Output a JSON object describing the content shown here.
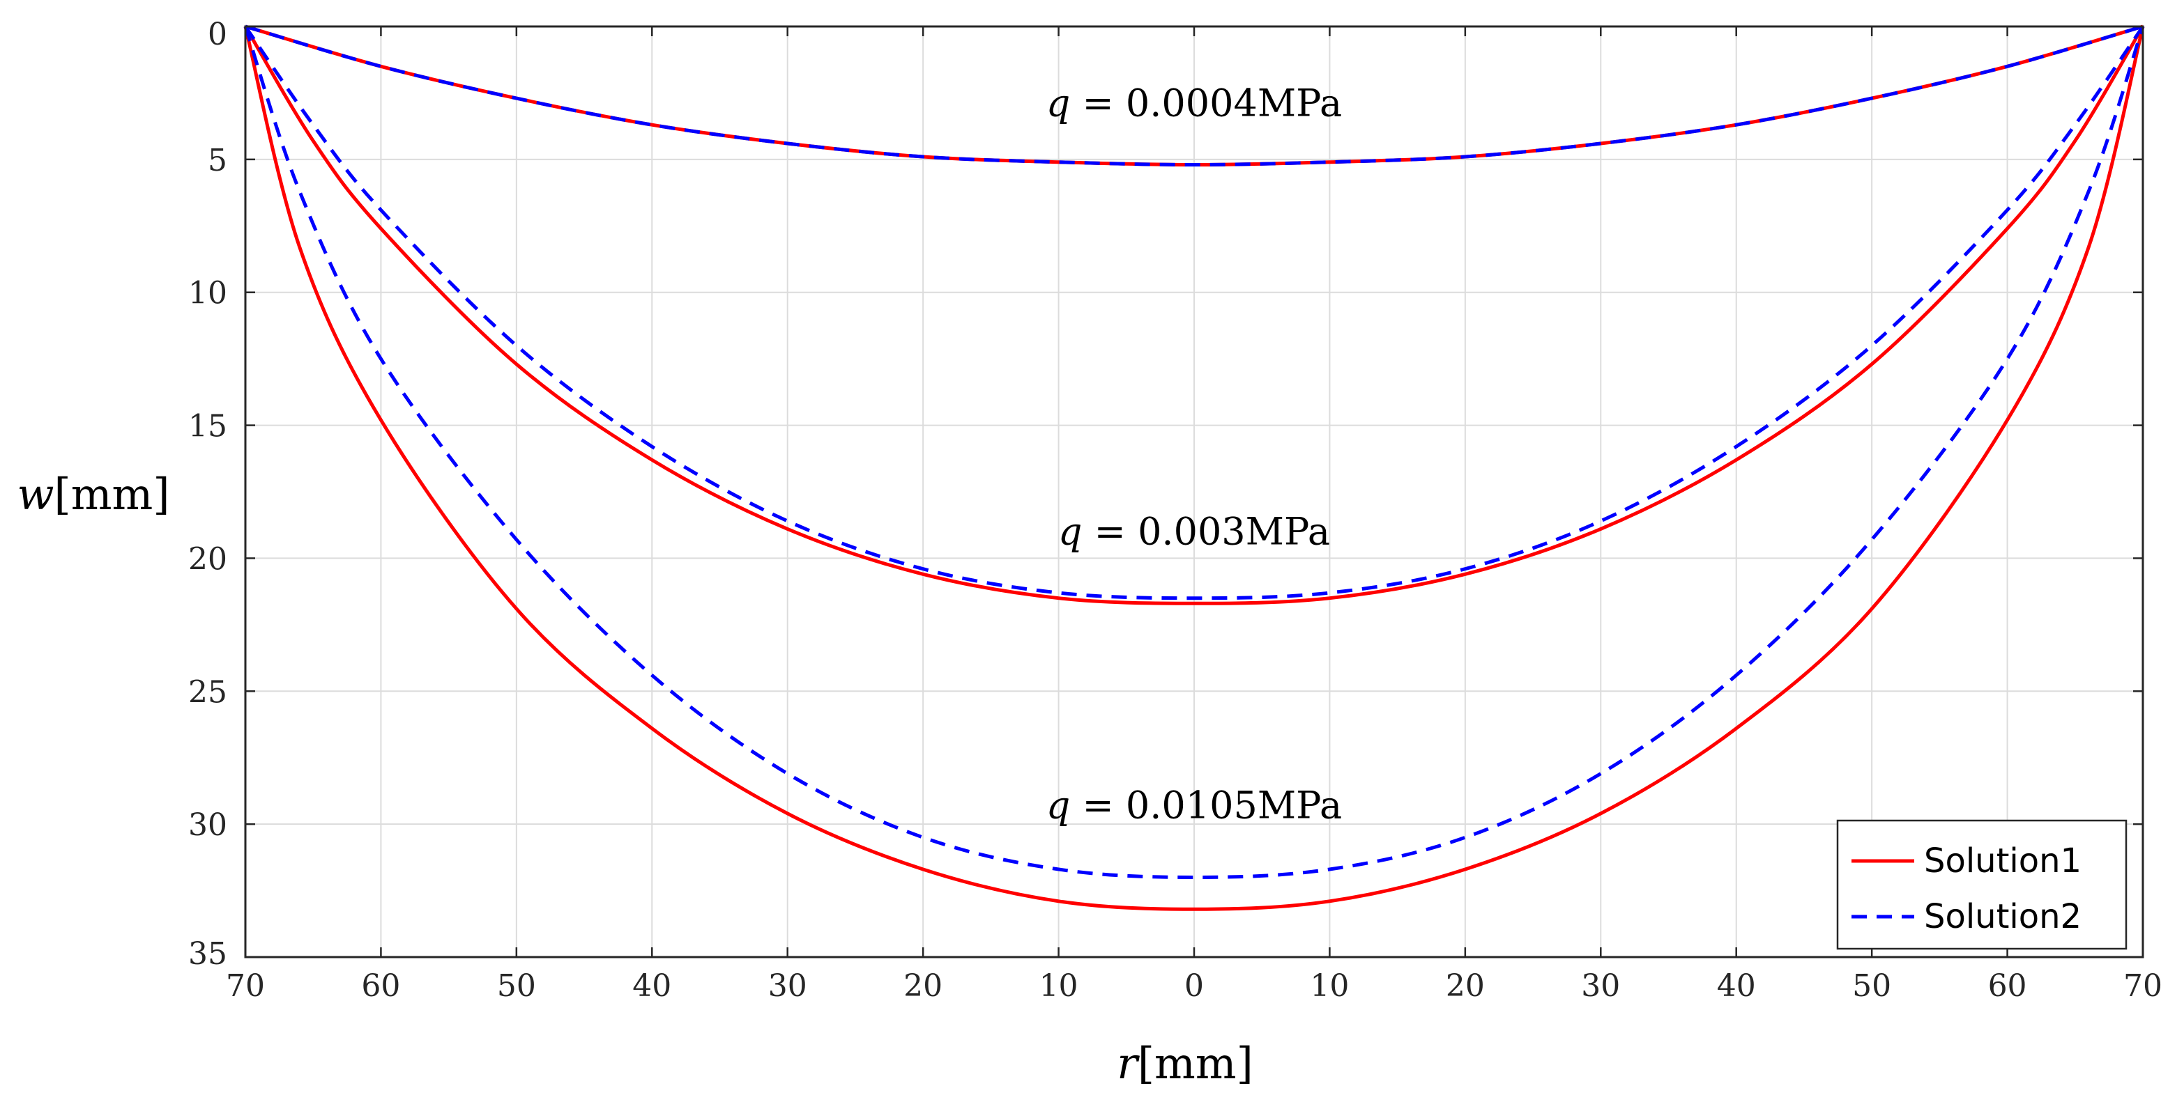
{
  "chart_data": {
    "type": "line",
    "title": "",
    "xlabel_var": "r",
    "xlabel_unit": "[mm]",
    "ylabel_var": "w",
    "ylabel_unit": "[mm]",
    "xlim": [
      -70,
      70
    ],
    "ylim": [
      0,
      35
    ],
    "y_reversed": true,
    "grid": true,
    "x_ticks": [
      -70,
      -60,
      -50,
      -40,
      -30,
      -20,
      -10,
      0,
      10,
      20,
      30,
      40,
      50,
      60,
      70
    ],
    "x_tick_labels": [
      "70",
      "60",
      "50",
      "40",
      "30",
      "20",
      "10",
      "0",
      "10",
      "20",
      "30",
      "40",
      "50",
      "60",
      "70"
    ],
    "y_ticks": [
      0,
      5,
      10,
      15,
      20,
      25,
      30,
      35
    ],
    "y_tick_labels": [
      "0",
      "5",
      "10",
      "15",
      "20",
      "25",
      "30",
      "35"
    ],
    "legend_position": "bottom-right",
    "series": [
      {
        "name": "Solution1",
        "color": "#ff0000",
        "dash": "solid",
        "load": "q = 0.0004MPa",
        "x": [
          -70,
          -60,
          -50,
          -40,
          -30,
          -20,
          -10,
          0,
          10,
          20,
          30,
          40,
          50,
          60,
          70
        ],
        "values": [
          0,
          1.5,
          2.7,
          3.7,
          4.4,
          4.9,
          5.1,
          5.2,
          5.1,
          4.9,
          4.4,
          3.7,
          2.7,
          1.5,
          0
        ]
      },
      {
        "name": "Solution2",
        "color": "#0000ff",
        "dash": "dashed",
        "load": "q = 0.0004MPa",
        "x": [
          -70,
          -60,
          -50,
          -40,
          -30,
          -20,
          -10,
          0,
          10,
          20,
          30,
          40,
          50,
          60,
          70
        ],
        "values": [
          0,
          1.5,
          2.7,
          3.7,
          4.4,
          4.9,
          5.1,
          5.2,
          5.1,
          4.9,
          4.4,
          3.7,
          2.7,
          1.5,
          0
        ]
      },
      {
        "name": "Solution1",
        "color": "#ff0000",
        "dash": "solid",
        "load": "q = 0.003MPa",
        "x": [
          -70,
          -65,
          -60,
          -50,
          -40,
          -30,
          -20,
          -10,
          0,
          10,
          20,
          30,
          40,
          50,
          60,
          65,
          70
        ],
        "values": [
          0,
          4.3,
          7.6,
          12.7,
          16.3,
          18.9,
          20.6,
          21.5,
          21.7,
          21.5,
          20.6,
          18.9,
          16.3,
          12.7,
          7.6,
          4.3,
          0
        ]
      },
      {
        "name": "Solution2",
        "color": "#0000ff",
        "dash": "dashed",
        "load": "q = 0.003MPa",
        "x": [
          -70,
          -65,
          -60,
          -50,
          -40,
          -30,
          -20,
          -10,
          0,
          10,
          20,
          30,
          40,
          50,
          60,
          65,
          70
        ],
        "values": [
          0,
          3.7,
          6.9,
          12.0,
          15.8,
          18.6,
          20.4,
          21.3,
          21.5,
          21.3,
          20.4,
          18.6,
          15.8,
          12.0,
          6.9,
          3.7,
          0
        ]
      },
      {
        "name": "Solution1",
        "color": "#ff0000",
        "dash": "solid",
        "load": "q = 0.0105MPa",
        "x": [
          -70,
          -66,
          -60,
          -50,
          -40,
          -30,
          -20,
          -10,
          0,
          10,
          20,
          30,
          40,
          50,
          60,
          66,
          70
        ],
        "values": [
          0,
          8.3,
          14.8,
          21.9,
          26.4,
          29.6,
          31.7,
          32.9,
          33.2,
          32.9,
          31.7,
          29.6,
          26.4,
          21.9,
          14.8,
          8.3,
          0
        ]
      },
      {
        "name": "Solution2",
        "color": "#0000ff",
        "dash": "dashed",
        "load": "q = 0.0105MPa",
        "x": [
          -70,
          -66,
          -60,
          -50,
          -40,
          -30,
          -20,
          -10,
          0,
          10,
          20,
          30,
          40,
          50,
          60,
          66,
          70
        ],
        "values": [
          0,
          6.2,
          12.5,
          19.3,
          24.4,
          28.1,
          30.5,
          31.7,
          32.0,
          31.7,
          30.5,
          28.1,
          24.4,
          19.3,
          12.5,
          6.2,
          0
        ]
      }
    ],
    "annotations": [
      {
        "var": "q",
        "text": " = 0.0004MPa",
        "x": 0,
        "y": 2.9
      },
      {
        "var": "q",
        "text": " = 0.003MPa",
        "x": 0,
        "y": 19.0
      },
      {
        "var": "q",
        "text": " = 0.0105MPa",
        "x": 0,
        "y": 29.3
      }
    ],
    "legend": [
      {
        "label": "Solution1",
        "color": "#ff0000",
        "dash": "solid"
      },
      {
        "label": "Solution2",
        "color": "#0000ff",
        "dash": "dashed"
      }
    ]
  }
}
